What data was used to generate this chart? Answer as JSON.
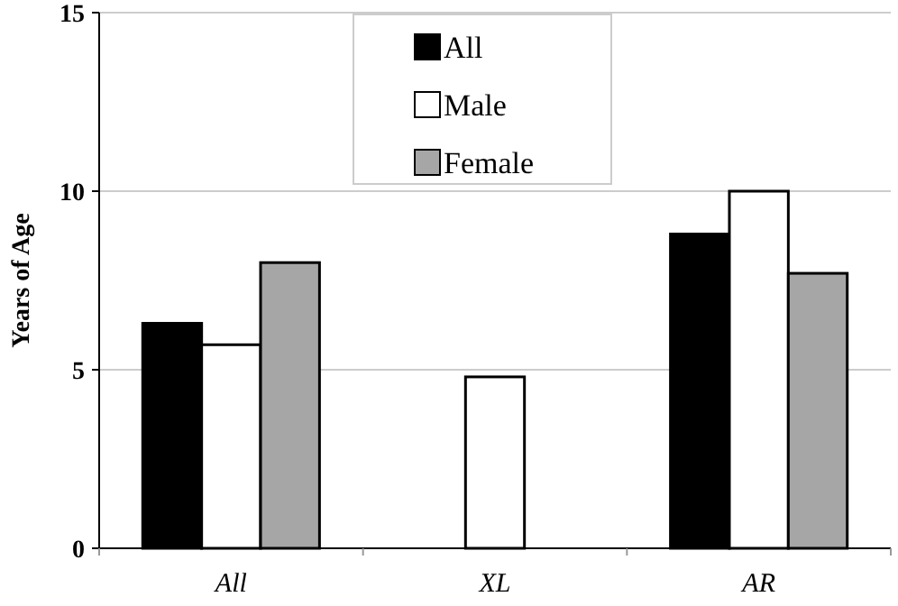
{
  "chart_data": {
    "type": "bar",
    "ylabel": "Years of Age",
    "categories": [
      "All",
      "XL",
      "AR"
    ],
    "series": [
      {
        "name": "All",
        "color": "#000000",
        "values": [
          6.3,
          null,
          8.8
        ]
      },
      {
        "name": "Male",
        "color": "#ffffff",
        "values": [
          5.7,
          4.8,
          10
        ]
      },
      {
        "name": "Female",
        "color": "#a6a6a6",
        "values": [
          8.0,
          null,
          7.7
        ]
      }
    ],
    "ylim": [
      0,
      15
    ],
    "yticks": [
      0,
      5,
      10,
      15
    ],
    "grid": "y",
    "legend": "top"
  }
}
